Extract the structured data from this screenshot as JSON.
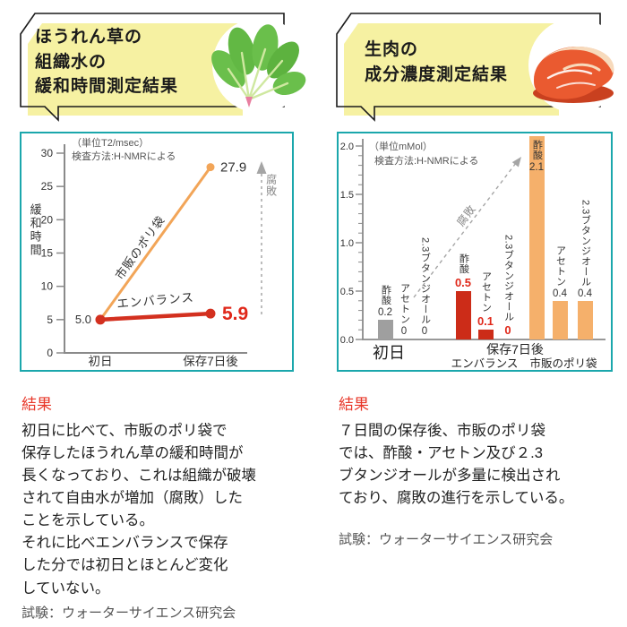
{
  "colors": {
    "teal_border": "#1ba7ac",
    "bubble_yellow": "#f6f1a2",
    "poly_orange": "#f2a558",
    "bar_orange": "#f5b06b",
    "emb_red": "#d3301f",
    "bar_red": "#cc2c18",
    "value_red": "#e0281a",
    "bar_gray": "#9f9f9f",
    "result_red": "#e8382a",
    "axis_gray": "#8a8a8a",
    "decay_gray": "#a5a5a5"
  },
  "left_panel": {
    "title_lines": [
      "ほうれん草の",
      "組織水の",
      "緩和時間測定結果"
    ],
    "illustration": "spinach",
    "result": {
      "heading": "結果",
      "body": "初日に比べて、市販のポリ袋で\n保存したほうれん草の緩和時間が\n長くなっており、これは組織が破壊\nされて自由水が増加（腐敗）した\nことを示している。\nそれに比べエンバランスで保存\nした分では初日とほとんど変化\nしていない。",
      "trial": "試験：ウォーターサイエンス研究会"
    }
  },
  "right_panel": {
    "title_lines": [
      "生肉の",
      "成分濃度測定結果"
    ],
    "illustration": "meat",
    "result": {
      "heading": "結果",
      "body": "７日間の保存後、市販のポリ袋\nでは、酢酸・アセトン及び２.3\nブタンジオールが多量に検出され\nており、腐敗の進行を示している。",
      "trial": "試験：ウォーターサイエンス研究会"
    }
  },
  "chart_data": [
    {
      "type": "line",
      "title": "ほうれん草の組織水の緩和時間測定結果",
      "unit_note": "（単位T2/msec）",
      "method_note": "検査方法:H-NMRによる",
      "ylabel": "緩和時間",
      "ylim": [
        0,
        30
      ],
      "yticks": [
        0,
        5,
        10,
        15,
        20,
        25,
        30
      ],
      "categories": [
        "初日",
        "保存7日後"
      ],
      "series": [
        {
          "name": "市販のポリ袋",
          "values": [
            5.0,
            27.9
          ],
          "color": "#f2a558",
          "end_label": "27.9"
        },
        {
          "name": "エンバランス",
          "values": [
            5.0,
            5.9
          ],
          "color": "#d3301f",
          "end_label": "5.9"
        }
      ],
      "start_label": "5.0",
      "decay_label": "腐敗",
      "grid": false,
      "legend": "labels-on-lines"
    },
    {
      "type": "bar",
      "title": "生肉の成分濃度測定結果",
      "unit_note": "（単位mMol）",
      "method_note": "検査方法:H-NMRによる",
      "ylim": [
        0,
        2.0
      ],
      "yticks": [
        0,
        0.5,
        1.0,
        1.5,
        2.0
      ],
      "ytick_labels": [
        "0.0",
        "0.5",
        "1.0",
        "1.5",
        "2.0"
      ],
      "minor_tick_step": 0.1,
      "decay_label": "腐敗",
      "groups": [
        {
          "name": "初日",
          "bars": [
            {
              "label": "酢酸",
              "value": 0.2,
              "display": "0.2",
              "color": "#9f9f9f",
              "value_style": "dark"
            },
            {
              "label": "アセトン",
              "value": 0,
              "display": "0",
              "color": "#9f9f9f",
              "value_style": "dark"
            },
            {
              "label": "2.3ブタンジオール",
              "value": 0,
              "display": "0",
              "color": "#9f9f9f",
              "value_style": "dark"
            }
          ]
        },
        {
          "name": "エンバランス",
          "bars": [
            {
              "label": "酢酸",
              "value": 0.5,
              "display": "0.5",
              "color": "#cc2c18",
              "value_style": "red"
            },
            {
              "label": "アセトン",
              "value": 0.1,
              "display": "0.1",
              "color": "#cc2c18",
              "value_style": "red"
            },
            {
              "label": "2.3ブタンジオール",
              "value": 0,
              "display": "0",
              "color": "#cc2c18",
              "value_style": "red"
            }
          ]
        },
        {
          "name": "市販のポリ袋",
          "bars": [
            {
              "label": "酢酸",
              "value": 2.1,
              "display": "2.1",
              "color": "#f5b06b",
              "value_style": "dark",
              "label_inside": true
            },
            {
              "label": "アセトン",
              "value": 0.4,
              "display": "0.4",
              "color": "#f5b06b",
              "value_style": "dark"
            },
            {
              "label": "2.3ブタンジオール",
              "value": 0.4,
              "display": "0.4",
              "color": "#f5b06b",
              "value_style": "dark"
            }
          ]
        }
      ],
      "x_axis_labels": {
        "day0": "初日",
        "day7": "保存7日後",
        "emb": "エンバランス",
        "poly": "市販のポリ袋"
      }
    }
  ]
}
